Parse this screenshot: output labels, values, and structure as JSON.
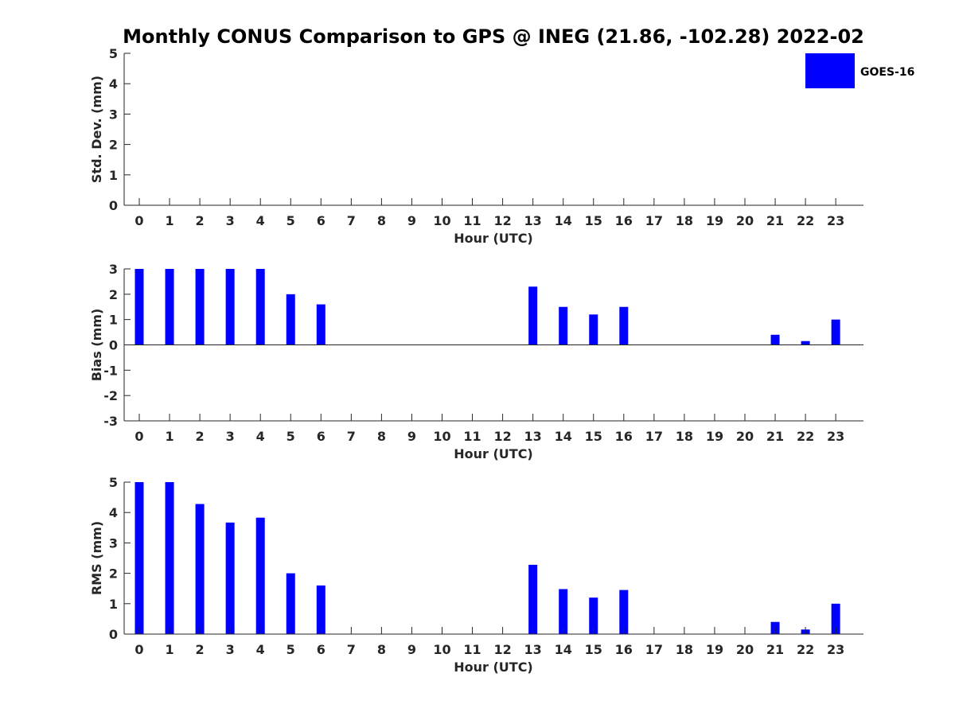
{
  "title": "Monthly CONUS Comparison to GPS @ INEG (21.86, -102.28) 2022-02",
  "legend": {
    "label": "GOES-16",
    "color": "#0000ff"
  },
  "chart_data": [
    {
      "type": "bar",
      "ylabel": "Std. Dev. (mm)",
      "xlabel": "Hour (UTC)",
      "categories": [
        "0",
        "1",
        "2",
        "3",
        "4",
        "5",
        "6",
        "7",
        "8",
        "9",
        "10",
        "11",
        "12",
        "13",
        "14",
        "15",
        "16",
        "17",
        "18",
        "19",
        "20",
        "21",
        "22",
        "23"
      ],
      "ylim": [
        0,
        5
      ],
      "yticks": [
        "0",
        "1",
        "2",
        "3",
        "4",
        "5"
      ],
      "series": [
        {
          "name": "GOES-16",
          "color": "#0000ff",
          "values": [
            null,
            null,
            null,
            null,
            null,
            null,
            null,
            null,
            null,
            null,
            null,
            null,
            null,
            null,
            null,
            null,
            null,
            null,
            null,
            null,
            null,
            null,
            null,
            null
          ]
        }
      ]
    },
    {
      "type": "bar",
      "ylabel": "Bias (mm)",
      "xlabel": "Hour (UTC)",
      "categories": [
        "0",
        "1",
        "2",
        "3",
        "4",
        "5",
        "6",
        "7",
        "8",
        "9",
        "10",
        "11",
        "12",
        "13",
        "14",
        "15",
        "16",
        "17",
        "18",
        "19",
        "20",
        "21",
        "22",
        "23"
      ],
      "ylim": [
        -3,
        3
      ],
      "yticks": [
        "-3",
        "-2",
        "-1",
        "0",
        "1",
        "2",
        "3"
      ],
      "zero_line": true,
      "series": [
        {
          "name": "GOES-16",
          "color": "#0000ff",
          "values": [
            3.0,
            3.0,
            3.0,
            3.0,
            3.0,
            2.0,
            1.6,
            null,
            null,
            null,
            null,
            null,
            null,
            2.3,
            1.5,
            1.2,
            1.5,
            null,
            null,
            null,
            null,
            0.4,
            0.15,
            1.0
          ]
        }
      ]
    },
    {
      "type": "bar",
      "ylabel": "RMS (mm)",
      "xlabel": "Hour (UTC)",
      "categories": [
        "0",
        "1",
        "2",
        "3",
        "4",
        "5",
        "6",
        "7",
        "8",
        "9",
        "10",
        "11",
        "12",
        "13",
        "14",
        "15",
        "16",
        "17",
        "18",
        "19",
        "20",
        "21",
        "22",
        "23"
      ],
      "ylim": [
        0,
        5
      ],
      "yticks": [
        "0",
        "1",
        "2",
        "3",
        "4",
        "5"
      ],
      "series": [
        {
          "name": "GOES-16",
          "color": "#0000ff",
          "values": [
            5.0,
            5.0,
            4.28,
            3.67,
            3.83,
            2.0,
            1.6,
            null,
            null,
            null,
            null,
            null,
            null,
            2.28,
            1.48,
            1.2,
            1.45,
            null,
            null,
            null,
            null,
            0.4,
            0.15,
            1.0
          ]
        }
      ]
    }
  ]
}
